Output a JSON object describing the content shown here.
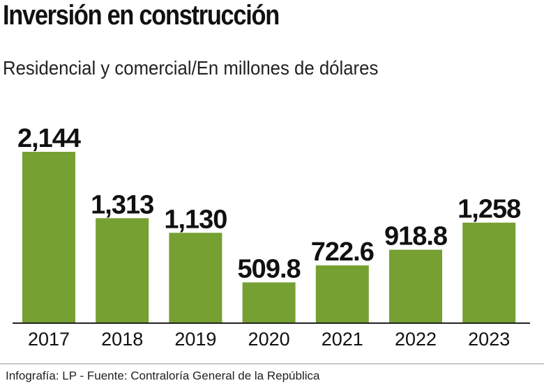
{
  "header": {
    "title": "Inversión en construcción",
    "subtitle": "Residencial y comercial/En millones de dólares"
  },
  "chart_data": {
    "type": "bar",
    "categories": [
      "2017",
      "2018",
      "2019",
      "2020",
      "2021",
      "2022",
      "2023"
    ],
    "values": [
      2144,
      1313,
      1130,
      509.8,
      722.6,
      918.8,
      1258
    ],
    "value_labels": [
      "2,144",
      "1,313",
      "1,130",
      "509.8",
      "722.6",
      "918.8",
      "1,258"
    ],
    "title": "Inversión en construcción",
    "subtitle": "Residencial y comercial/En millones de dólares",
    "xlabel": "",
    "ylabel": "",
    "ylim": [
      0,
      2144
    ],
    "grid": false,
    "bar_color": "#76a032",
    "axis_color": "#222222"
  },
  "footer": {
    "source": "Infografía: LP - Fuente: Contraloría General de la República"
  }
}
